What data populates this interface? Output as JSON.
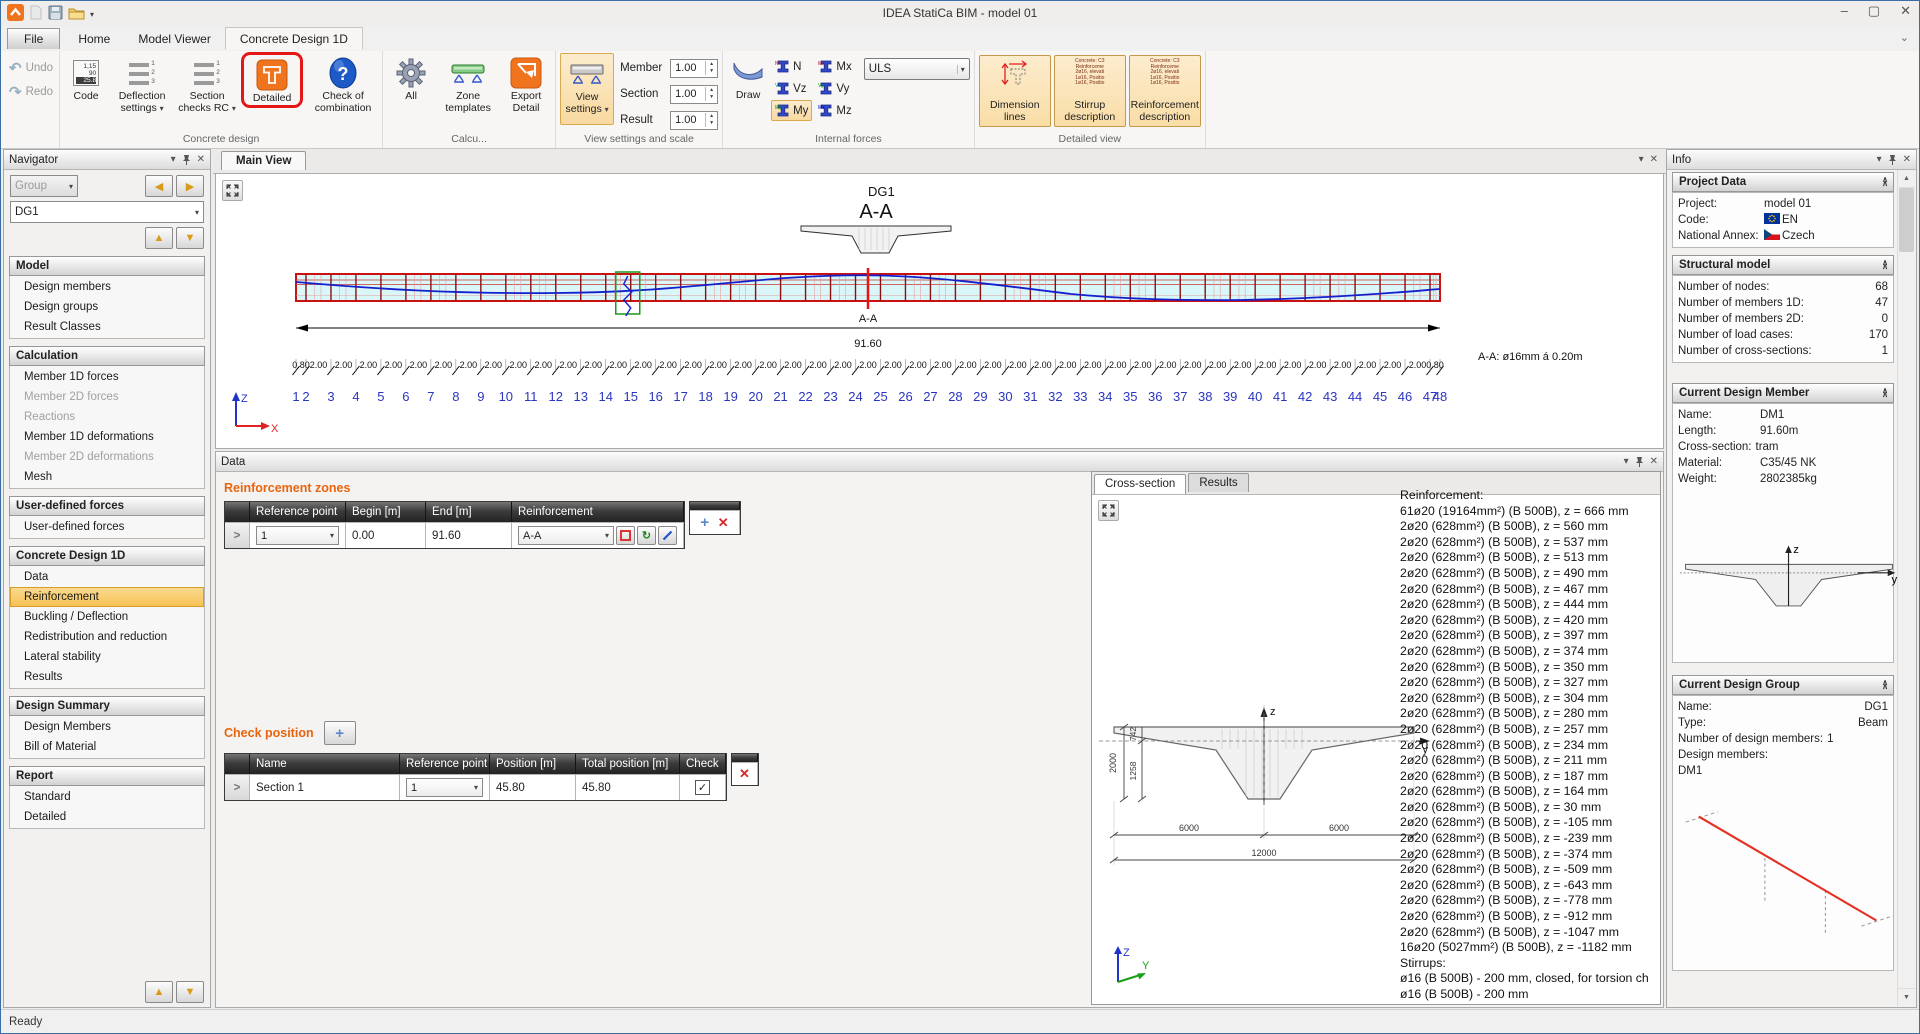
{
  "window": {
    "title": "IDEA StatiCa BIM - model 01",
    "minimize": "–",
    "maximize": "▢",
    "close": "✕"
  },
  "quick_access_icons": [
    "app-logo-icon",
    "new-file-icon",
    "save-icon",
    "open-folder-icon",
    "dropdown-arrow-icon"
  ],
  "tabstrip": {
    "tabs": [
      {
        "label": "File",
        "file": true
      },
      {
        "label": "Home"
      },
      {
        "label": "Model Viewer"
      },
      {
        "label": "Concrete Design 1D",
        "active": true
      }
    ]
  },
  "ribbon": {
    "undo": "Undo",
    "redo": "Redo",
    "concrete_design": {
      "label": "Concrete design",
      "code": "Code",
      "deflection": "Deflection settings",
      "section_checks": "Section checks RC",
      "detailed": "Detailed",
      "check_combination": "Check of combination"
    },
    "calculation": {
      "label": "Calcu...",
      "all": "All",
      "zone_templates": "Zone templates",
      "export_detail": "Export Detail"
    },
    "view_scale": {
      "label": "View settings and scale",
      "view_settings": "View settings",
      "scales": [
        {
          "label": "Member",
          "value": "1.00"
        },
        {
          "label": "Section",
          "value": "1.00"
        },
        {
          "label": "Result",
          "value": "1.00"
        }
      ]
    },
    "internal_forces": {
      "label": "Internal forces",
      "draw": "Draw",
      "combo": "ULS",
      "components": [
        {
          "label": "N",
          "color": "#cc0000"
        },
        {
          "label": "Vz",
          "color": "#009999"
        },
        {
          "label": "My",
          "color": "#009900",
          "highlight": true
        },
        {
          "label": "Mx",
          "color": "#cc0000"
        },
        {
          "label": "Vy",
          "color": "#009900"
        },
        {
          "label": "Mz",
          "color": "#0000cc"
        }
      ]
    },
    "detailed_view": {
      "label": "Detailed view",
      "buttons": [
        "Dimension lines",
        "Stirrup description",
        "Reinforcement description"
      ],
      "desc_icon_lines": [
        "Concrete: C3",
        "Reinforceme",
        "2ø16, elevati",
        "1ø16, Positio",
        "1ø16, Positio"
      ]
    }
  },
  "navigator": {
    "title": "Navigator",
    "group_combo": "Group",
    "member_combo": "DG1",
    "sections": [
      {
        "title": "Model",
        "items": [
          {
            "label": "Design members"
          },
          {
            "label": "Design groups"
          },
          {
            "label": "Result Classes"
          }
        ]
      },
      {
        "title": "Calculation",
        "items": [
          {
            "label": "Member 1D forces"
          },
          {
            "label": "Member 2D forces",
            "disabled": true
          },
          {
            "label": "Reactions",
            "disabled": true
          },
          {
            "label": "Member 1D deformations"
          },
          {
            "label": "Member 2D deformations",
            "disabled": true
          },
          {
            "label": "Mesh"
          }
        ]
      },
      {
        "title": "User-defined forces",
        "items": [
          {
            "label": "User-defined forces"
          }
        ]
      },
      {
        "title": "Concrete Design 1D",
        "items": [
          {
            "label": "Data"
          },
          {
            "label": "Reinforcement",
            "selected": true
          },
          {
            "label": "Buckling / Deflection"
          },
          {
            "label": "Redistribution and reduction"
          },
          {
            "label": "Lateral stability"
          },
          {
            "label": "Results"
          }
        ]
      },
      {
        "title": "Design Summary",
        "items": [
          {
            "label": "Design Members"
          },
          {
            "label": "Bill of Material"
          }
        ]
      },
      {
        "title": "Report",
        "items": [
          {
            "label": "Standard"
          },
          {
            "label": "Detailed"
          }
        ]
      }
    ]
  },
  "main_view": {
    "tab": "Main View",
    "title": "DG1",
    "section_label": "A-A",
    "dim_caption": "A-A",
    "total_length": "91.60",
    "note": "A-A: ø16mm á 0.20m",
    "axis": {
      "vertical": "Z",
      "horizontal": "X"
    },
    "segments": [
      "0.80",
      "2.00",
      "2.00",
      "2.00",
      "2.00",
      "2.00",
      "2.00",
      "2.00",
      "2.00",
      "2.00",
      "2.00",
      "2.00",
      "2.00",
      "2.00",
      "2.00",
      "2.00",
      "2.00",
      "2.00",
      "2.00",
      "2.00",
      "2.00",
      "2.00",
      "2.00",
      "2.00",
      "2.00",
      "2.00",
      "2.00",
      "2.00",
      "2.00",
      "2.00",
      "2.00",
      "2.00",
      "2.00",
      "2.00",
      "2.00",
      "2.00",
      "2.00",
      "2.00",
      "2.00",
      "2.00",
      "2.00",
      "2.00",
      "2.00",
      "2.00",
      "2.00",
      "2.00",
      "0.80"
    ],
    "section_numbers": [
      1,
      2,
      3,
      4,
      5,
      6,
      7,
      8,
      9,
      10,
      11,
      12,
      13,
      14,
      15,
      16,
      17,
      18,
      19,
      20,
      21,
      22,
      23,
      24,
      25,
      26,
      27,
      28,
      29,
      30,
      31,
      32,
      33,
      34,
      35,
      36,
      37,
      38,
      39,
      40,
      41,
      42,
      43,
      44,
      45,
      46,
      47,
      48
    ]
  },
  "data_panel": {
    "title": "Data",
    "zones": {
      "heading": "Reinforcement zones",
      "columns": [
        "Reference point",
        "Begin [m]",
        "End [m]",
        "Reinforcement"
      ],
      "row": {
        "reference_point": "1",
        "begin": "0.00",
        "end": "91.60",
        "reinforcement": "A-A"
      }
    },
    "check_position": {
      "heading": "Check position",
      "columns": [
        "Name",
        "Reference point",
        "Position [m]",
        "Total position [m]",
        "Check"
      ],
      "row": {
        "name": "Section 1",
        "reference_point": "1",
        "position": "45.80",
        "total_position": "45.80",
        "checked": true
      }
    }
  },
  "cross_section_panel": {
    "tabs": [
      {
        "label": "Cross-section",
        "active": true
      },
      {
        "label": "Results"
      }
    ],
    "drawing": {
      "height_total": "2000",
      "height_below": "1258",
      "height_above": "742",
      "half_left": "6000",
      "half_right": "6000",
      "width_total": "12000",
      "axis_vertical": "z",
      "axis_horizontal": "y"
    },
    "axis_icon": {
      "vertical": "Z",
      "horizontal": "Y"
    },
    "reinforcement_lines": [
      "Reinforcement:",
      "61ø20 (19164mm²) (B 500B), z = 666 mm",
      "2ø20 (628mm²) (B 500B), z = 560 mm",
      "2ø20 (628mm²) (B 500B), z = 537 mm",
      "2ø20 (628mm²) (B 500B), z = 513 mm",
      "2ø20 (628mm²) (B 500B), z = 490 mm",
      "2ø20 (628mm²) (B 500B), z = 467 mm",
      "2ø20 (628mm²) (B 500B), z = 444 mm",
      "2ø20 (628mm²) (B 500B), z = 420 mm",
      "2ø20 (628mm²) (B 500B), z = 397 mm",
      "2ø20 (628mm²) (B 500B), z = 374 mm",
      "2ø20 (628mm²) (B 500B), z = 350 mm",
      "2ø20 (628mm²) (B 500B), z = 327 mm",
      "2ø20 (628mm²) (B 500B), z = 304 mm",
      "2ø20 (628mm²) (B 500B), z = 280 mm",
      "2ø20 (628mm²) (B 500B), z = 257 mm",
      "2ø20 (628mm²) (B 500B), z = 234 mm",
      "2ø20 (628mm²) (B 500B), z = 211 mm",
      "2ø20 (628mm²) (B 500B), z = 187 mm",
      "2ø20 (628mm²) (B 500B), z = 164 mm",
      "2ø20 (628mm²) (B 500B), z = 30 mm",
      "2ø20 (628mm²) (B 500B), z = -105 mm",
      "2ø20 (628mm²) (B 500B), z = -239 mm",
      "2ø20 (628mm²) (B 500B), z = -374 mm",
      "2ø20 (628mm²) (B 500B), z = -509 mm",
      "2ø20 (628mm²) (B 500B), z = -643 mm",
      "2ø20 (628mm²) (B 500B), z = -778 mm",
      "2ø20 (628mm²) (B 500B), z = -912 mm",
      "2ø20 (628mm²) (B 500B), z = -1047 mm",
      "16ø20 (5027mm²) (B 500B), z = -1182 mm",
      "Stirrups:",
      "ø16 (B 500B) - 200 mm, closed, for torsion ch",
      "ø16 (B 500B) - 200 mm",
      "ø16 (B 500B) - 200 mm"
    ]
  },
  "info": {
    "title": "Info",
    "project_data": {
      "title": "Project Data",
      "rows": [
        {
          "label": "Project:",
          "value": "model 01"
        },
        {
          "label": "Code:",
          "value": "EN",
          "flag": "eu"
        },
        {
          "label": "National Annex:",
          "value": "Czech",
          "flag": "cz"
        }
      ]
    },
    "structural_model": {
      "title": "Structural model",
      "rows": [
        {
          "label": "Number of nodes:",
          "value": "68"
        },
        {
          "label": "Number of members 1D:",
          "value": "47"
        },
        {
          "label": "Number of members 2D:",
          "value": "0"
        },
        {
          "label": "Number of load cases:",
          "value": "170"
        },
        {
          "label": "Number of cross-sections:",
          "value": "1"
        }
      ]
    },
    "current_member": {
      "title": "Current Design Member",
      "rows": [
        {
          "label": "Name:",
          "value": "DM1"
        },
        {
          "label": "Length:",
          "value": "91.60m"
        },
        {
          "label": "Cross-section:",
          "value": "tram"
        },
        {
          "label": "Material:",
          "value": "C35/45 NK"
        },
        {
          "label": "Weight:",
          "value": "2802385kg"
        }
      ],
      "axis": {
        "vertical": "z",
        "horizontal": "y"
      }
    },
    "current_group": {
      "title": "Current Design Group",
      "rows": [
        {
          "label": "Name:",
          "value": "DG1",
          "align": "right"
        },
        {
          "label": "Type:",
          "value": "Beam",
          "align": "right"
        },
        {
          "label": "Number of design members:",
          "value": "1",
          "align": "after"
        },
        {
          "label": "Design members:",
          "value": "",
          "align": "after"
        },
        {
          "label": "DM1",
          "value": "",
          "align": "after"
        }
      ]
    }
  },
  "status": "Ready"
}
